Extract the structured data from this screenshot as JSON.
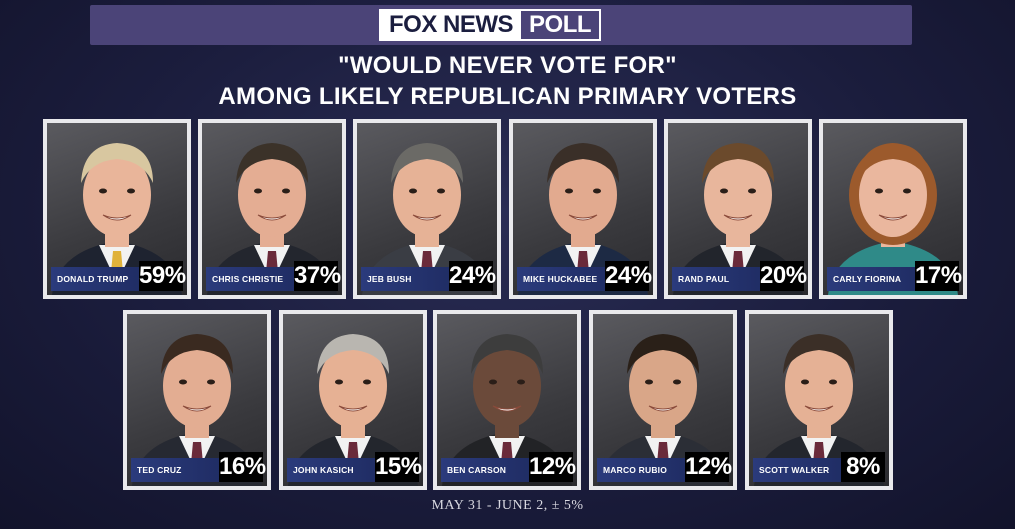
{
  "header": {
    "logo_fox": "FOX NEWS",
    "logo_poll": "POLL"
  },
  "chart_data": {
    "type": "bar",
    "title": "\"WOULD NEVER VOTE FOR\"",
    "subtitle": "AMONG LIKELY REPUBLICAN PRIMARY VOTERS",
    "categories": [
      "DONALD TRUMP",
      "CHRIS CHRISTIE",
      "JEB BUSH",
      "MIKE HUCKABEE",
      "RAND PAUL",
      "CARLY FIORINA",
      "TED CRUZ",
      "JOHN KASICH",
      "BEN CARSON",
      "MARCO RUBIO",
      "SCOTT WALKER"
    ],
    "values": [
      59,
      37,
      24,
      24,
      20,
      17,
      16,
      15,
      12,
      12,
      8
    ],
    "value_labels": [
      "59%",
      "37%",
      "24%",
      "24%",
      "20%",
      "17%",
      "16%",
      "15%",
      "12%",
      "12%",
      "8%"
    ],
    "unit": "%"
  },
  "footer": "MAY 31 - JUNE 2, ± 5%",
  "colors": {
    "background": "#1b1d3d",
    "header_bar": "#4b4478",
    "name_bar": "#2b3b7c",
    "percent_box": "#000000",
    "card_frame": "#e9e9ec"
  }
}
